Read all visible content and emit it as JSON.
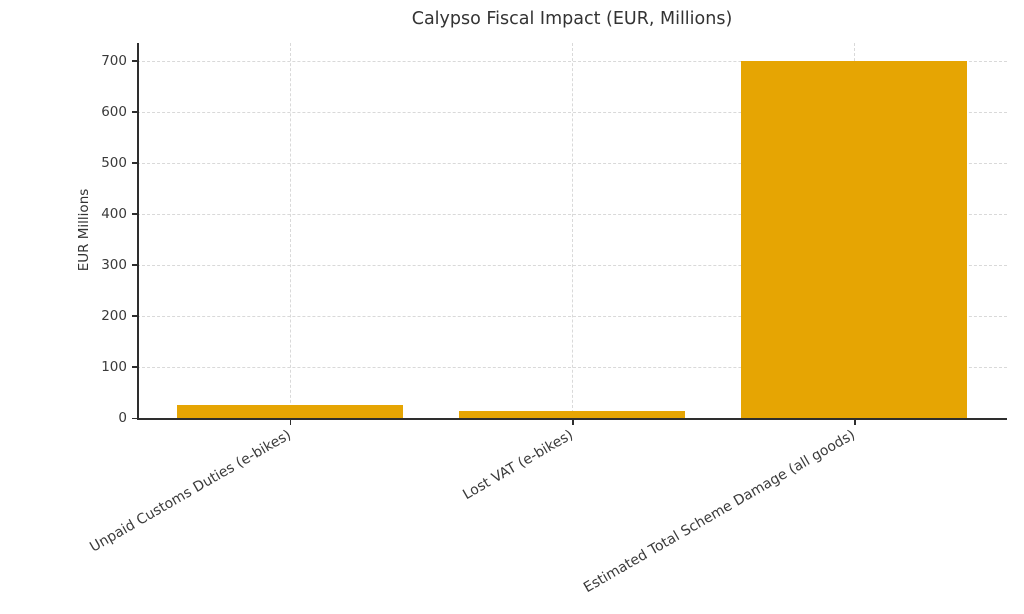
{
  "chart_data": {
    "type": "bar",
    "title": "Calypso Fiscal Impact (EUR, Millions)",
    "ylabel": "EUR Millions",
    "xlabel": "",
    "categories": [
      "Unpaid Customs Duties (e-bikes)",
      "Lost VAT (e-bikes)",
      "Estimated Total Scheme Damage (all goods)"
    ],
    "values": [
      26,
      13,
      700
    ],
    "yticks": [
      0,
      100,
      200,
      300,
      400,
      500,
      600,
      700
    ],
    "ylim": [
      0,
      735
    ],
    "bar_color": "#E6A503",
    "grid": "dashed-both-axes",
    "grid_color": "#D9D9D9",
    "axis_color": "#2E2E2E",
    "text_color": "#3A3A3A",
    "xtick_label_rotation_deg": 30,
    "legend": "none",
    "bar_width_fraction": 0.8
  }
}
